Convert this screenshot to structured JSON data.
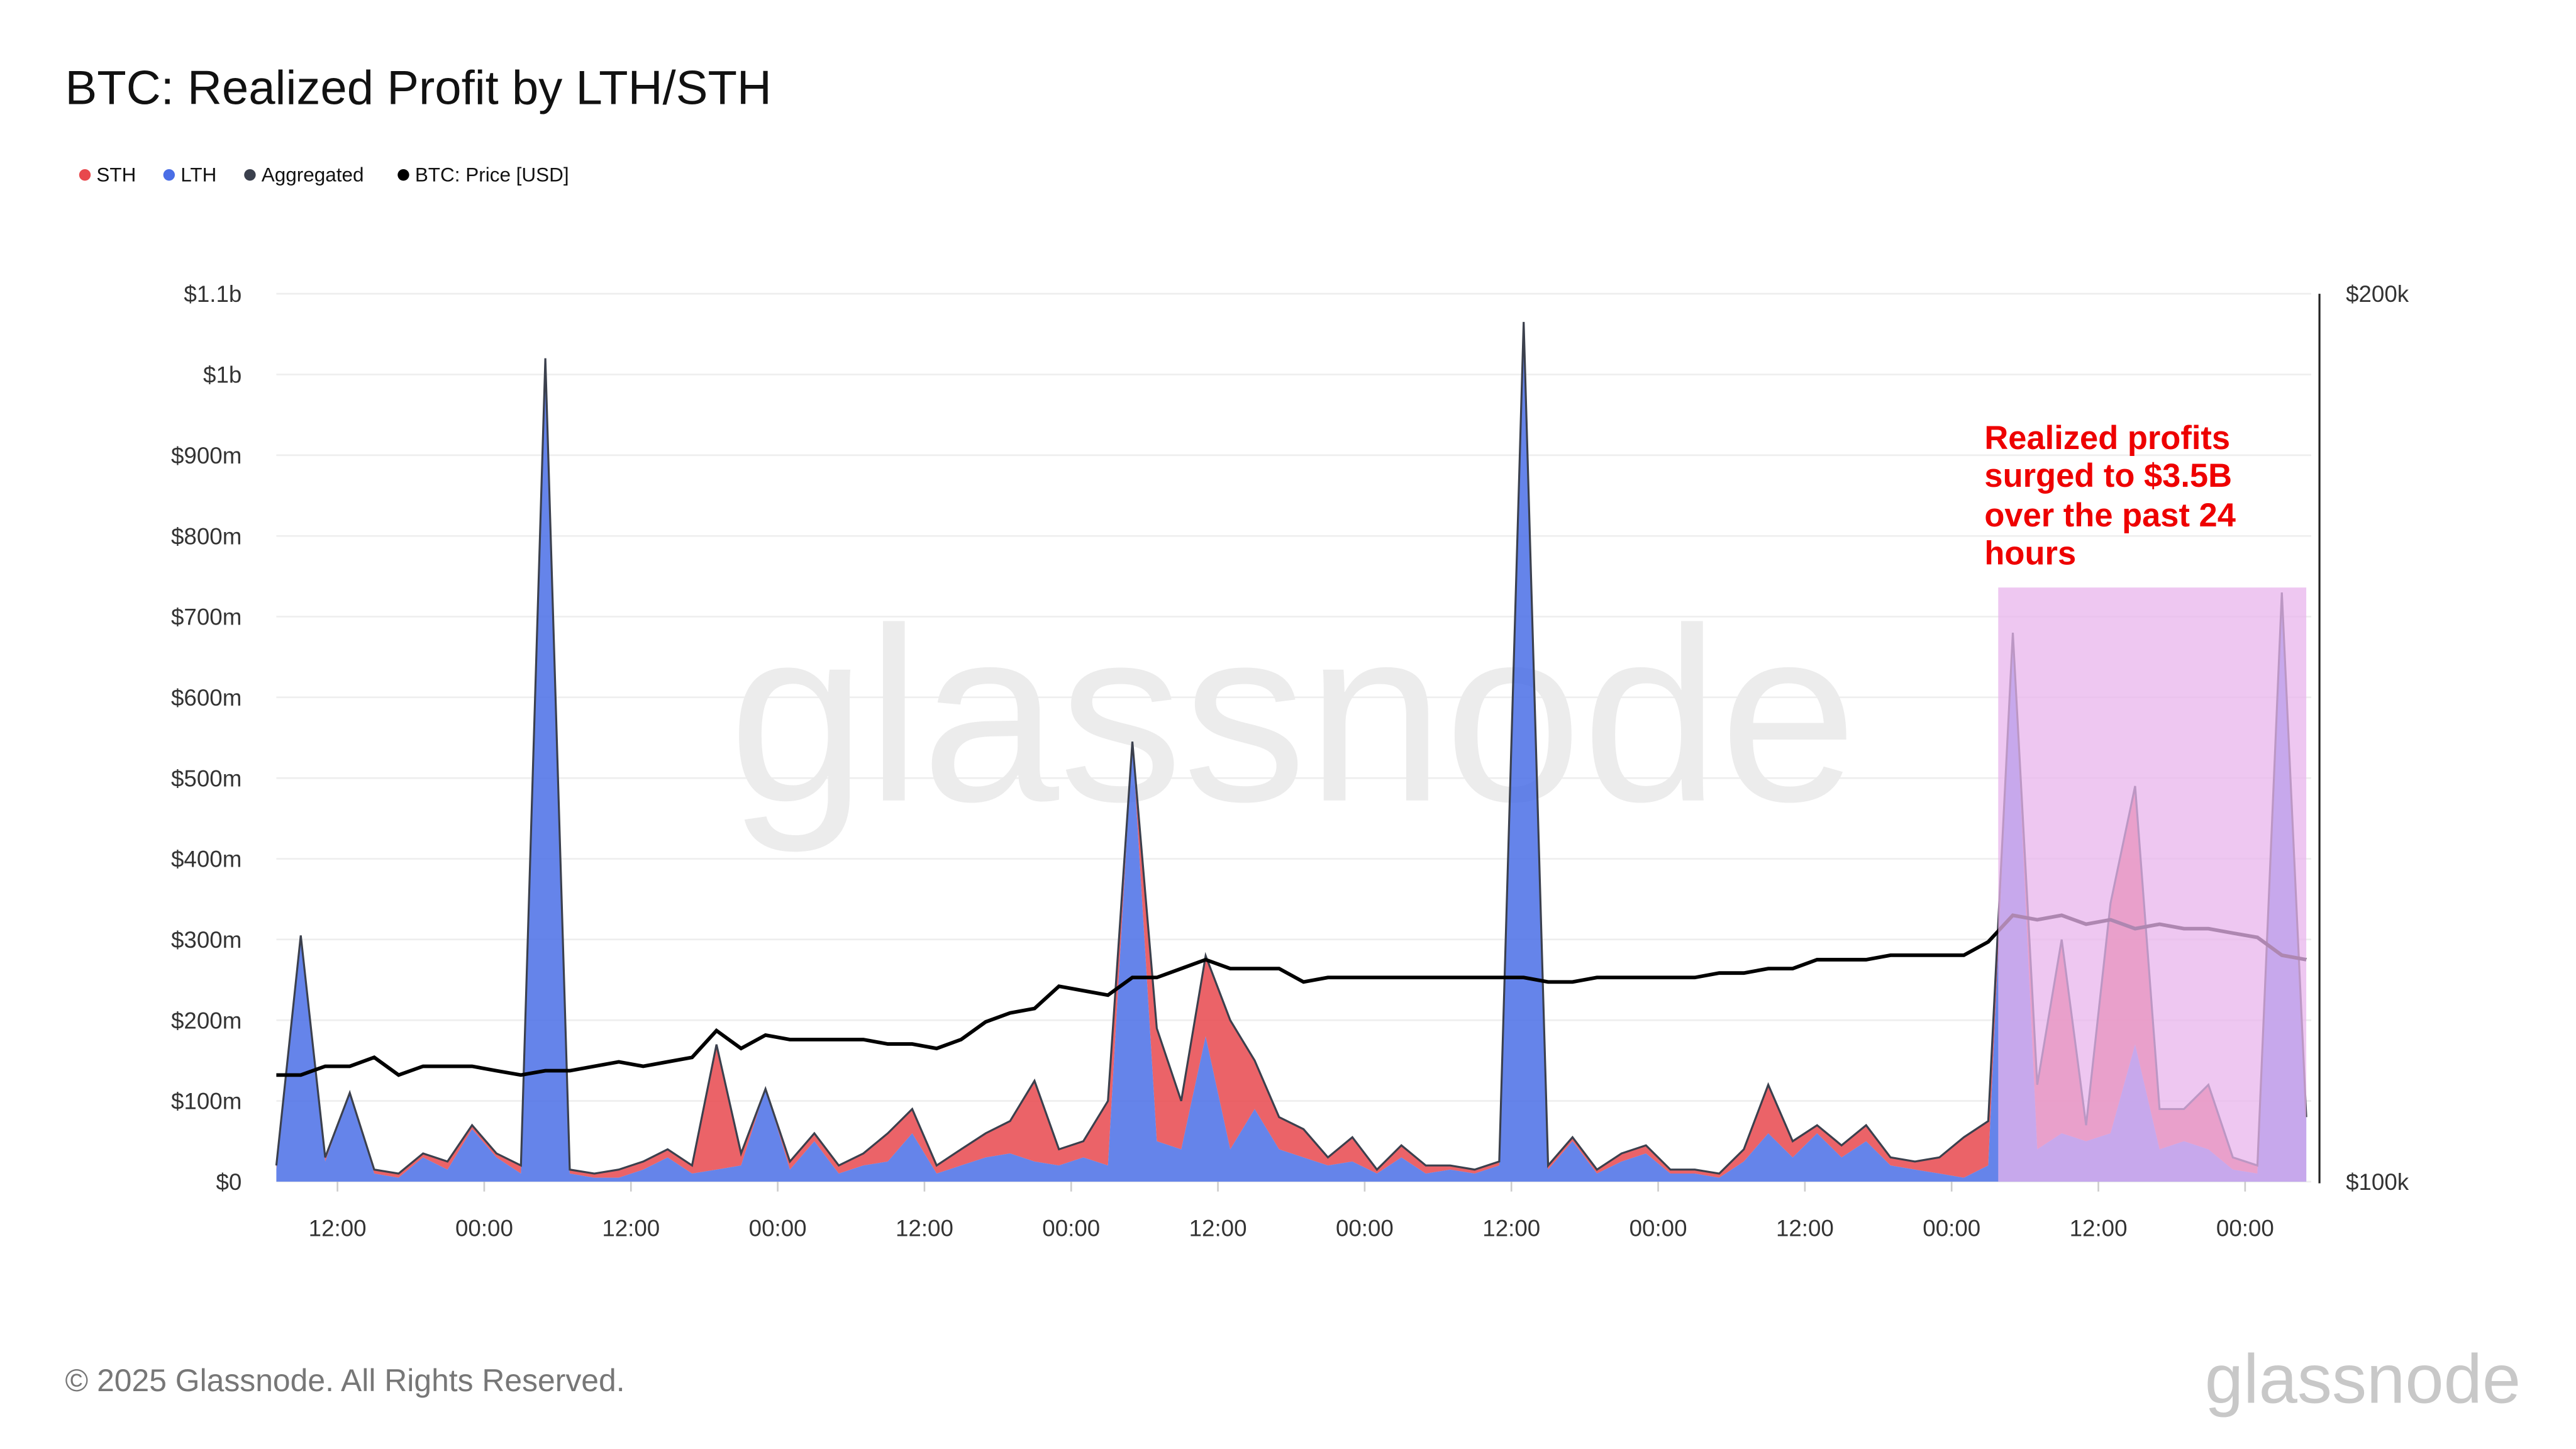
{
  "title": "BTC: Realized Profit by LTH/STH",
  "legend": [
    {
      "label": "STH",
      "color": "#e8484d"
    },
    {
      "label": "LTH",
      "color": "#4a6ee6"
    },
    {
      "label": "Aggregated",
      "color": "#3b404d"
    },
    {
      "label": "BTC: Price [USD]",
      "color": "#000000"
    }
  ],
  "annotation": {
    "lines": [
      "Realized profits",
      "surged to $3.5B",
      "over the past 24",
      "hours"
    ],
    "color": "#ee0000",
    "highlight_color": "#e8b4ec"
  },
  "watermark": "glassnode",
  "footer": {
    "copyright": "© 2025 Glassnode. All Rights Reserved.",
    "logo": "glassnode"
  },
  "chart_data": {
    "type": "area",
    "title": "BTC: Realized Profit by LTH/STH",
    "grid": true,
    "legend_placement": "top-left",
    "x_tick_labels": [
      "12:00",
      "00:00",
      "12:00",
      "00:00",
      "12:00",
      "00:00",
      "12:00",
      "00:00",
      "12:00",
      "00:00",
      "12:00",
      "00:00",
      "12:00",
      "00:00"
    ],
    "x_interval": "2h",
    "y_left": {
      "ticks": [
        "$0",
        "$100m",
        "$200m",
        "$300m",
        "$400m",
        "$500m",
        "$600m",
        "$700m",
        "$800m",
        "$900m",
        "$1b",
        "$1.1b"
      ],
      "range_usd_m": [
        0,
        1100
      ]
    },
    "y_right": {
      "ticks": [
        "$100k",
        "$200k"
      ],
      "range_usd_k": [
        100,
        200
      ]
    },
    "series": [
      {
        "name": "LTH",
        "unit": "USD m",
        "stacked": true,
        "values": [
          15,
          305,
          25,
          110,
          10,
          5,
          30,
          15,
          65,
          30,
          10,
          1020,
          10,
          5,
          5,
          15,
          30,
          10,
          15,
          20,
          115,
          15,
          50,
          10,
          20,
          25,
          60,
          10,
          20,
          30,
          35,
          25,
          20,
          30,
          20,
          545,
          50,
          40,
          180,
          40,
          90,
          40,
          30,
          20,
          25,
          10,
          30,
          10,
          15,
          10,
          20,
          1065,
          15,
          50,
          10,
          25,
          35,
          10,
          10,
          5,
          25,
          60,
          30,
          60,
          30,
          50,
          20,
          15,
          10,
          5,
          20,
          680,
          40,
          60,
          50,
          60,
          170,
          40,
          50,
          40,
          15,
          10,
          730,
          80
        ]
      },
      {
        "name": "STH",
        "unit": "USD m",
        "stacked": true,
        "values": [
          5,
          0,
          5,
          0,
          5,
          5,
          5,
          10,
          5,
          5,
          10,
          0,
          5,
          5,
          10,
          10,
          10,
          10,
          155,
          15,
          0,
          10,
          10,
          10,
          15,
          35,
          30,
          10,
          20,
          30,
          40,
          100,
          20,
          20,
          80,
          0,
          140,
          60,
          100,
          160,
          60,
          40,
          35,
          10,
          30,
          5,
          15,
          10,
          5,
          5,
          5,
          0,
          5,
          5,
          5,
          10,
          10,
          5,
          5,
          5,
          15,
          60,
          20,
          10,
          15,
          20,
          10,
          10,
          20,
          50,
          55,
          0,
          80,
          240,
          20,
          285,
          320,
          50,
          40,
          80,
          15,
          10,
          0,
          0
        ]
      },
      {
        "name": "BTC: Price [USD]",
        "unit": "USD k",
        "axis": "right",
        "values": [
          112,
          112,
          113,
          113,
          114,
          112,
          113,
          113,
          113,
          112.5,
          112,
          112.5,
          112.5,
          113,
          113.5,
          113,
          113.5,
          114,
          117,
          115,
          116.5,
          116,
          116,
          116,
          116,
          115.5,
          115.5,
          115,
          116,
          118,
          119,
          119.5,
          122,
          121.5,
          121,
          123,
          123,
          124,
          125,
          124,
          124,
          124,
          122.5,
          123,
          123,
          123,
          123,
          123,
          123,
          123,
          123,
          123,
          122.5,
          122.5,
          123,
          123,
          123,
          123,
          123,
          123.5,
          123.5,
          124,
          124,
          125,
          125,
          125,
          125.5,
          125.5,
          125.5,
          125.5,
          127,
          130,
          129.5,
          130,
          129,
          129.5,
          128.5,
          129,
          128.5,
          128.5,
          128,
          127.5,
          125.5,
          125
        ]
      }
    ],
    "highlight": {
      "label": "Realized profits surged to $3.5B over the past 24 hours",
      "from_point_index": 70,
      "to_point_index": 83
    }
  }
}
